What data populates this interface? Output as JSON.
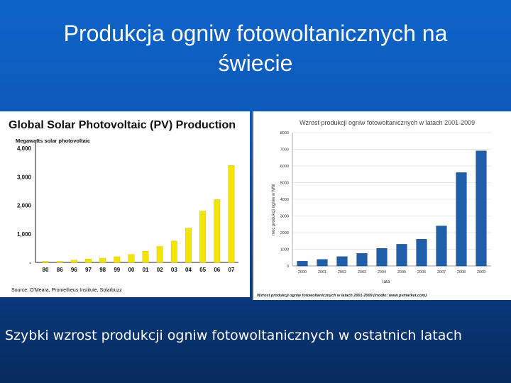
{
  "slide": {
    "title": "Produkcja ogniw fotowoltanicznych na świecie",
    "caption": "Szybki wzrost produkcji ogniw fotowoltanicznych w ostatnich latach"
  },
  "chart_data": [
    {
      "type": "bar",
      "title": "Global Solar Photovoltaic (PV) Production",
      "ylabel": "Megawatts solar photovoltaic",
      "categories": [
        "80",
        "86",
        "96",
        "97",
        "98",
        "99",
        "00",
        "01",
        "02",
        "03",
        "04",
        "05",
        "06",
        "07"
      ],
      "values": [
        5,
        20,
        80,
        120,
        150,
        200,
        280,
        390,
        560,
        750,
        1200,
        1800,
        2200,
        3400
      ],
      "ylim": [
        0,
        4200
      ],
      "yticks": [
        "-",
        "1,000",
        "2,000",
        "3,000",
        "4,000"
      ],
      "ytick_values": [
        0,
        1000,
        2000,
        3000,
        4000
      ],
      "source": "Source: O'Meara, Prometheus Institute, Solarbuzz",
      "bar_color": "#f2e600",
      "grid": false
    },
    {
      "type": "bar",
      "title": "Wzrost produkcji ogniw fotowoltanicznych w latach 2001-2009",
      "ylabel": "moc produkcji ogniw w MW",
      "xlabel": "lata",
      "categories": [
        "2000",
        "2001",
        "2002",
        "2003",
        "2004",
        "2005",
        "2006",
        "2007",
        "2008",
        "2009"
      ],
      "values": [
        280,
        390,
        560,
        750,
        1050,
        1300,
        1600,
        2400,
        5600,
        6900
      ],
      "ylim": [
        0,
        8000
      ],
      "yticks": [
        "0",
        "1000",
        "2000",
        "3000",
        "4000",
        "5000",
        "6000",
        "7000",
        "8000"
      ],
      "ytick_values": [
        0,
        1000,
        2000,
        3000,
        4000,
        5000,
        6000,
        7000,
        8000
      ],
      "source": "Wzrost produkcji ogniw fotowoltanicznych w latach 2001-2009 (źródło: www.pvmarket.com)",
      "bar_color": "#1f5ea8",
      "grid": true
    }
  ]
}
